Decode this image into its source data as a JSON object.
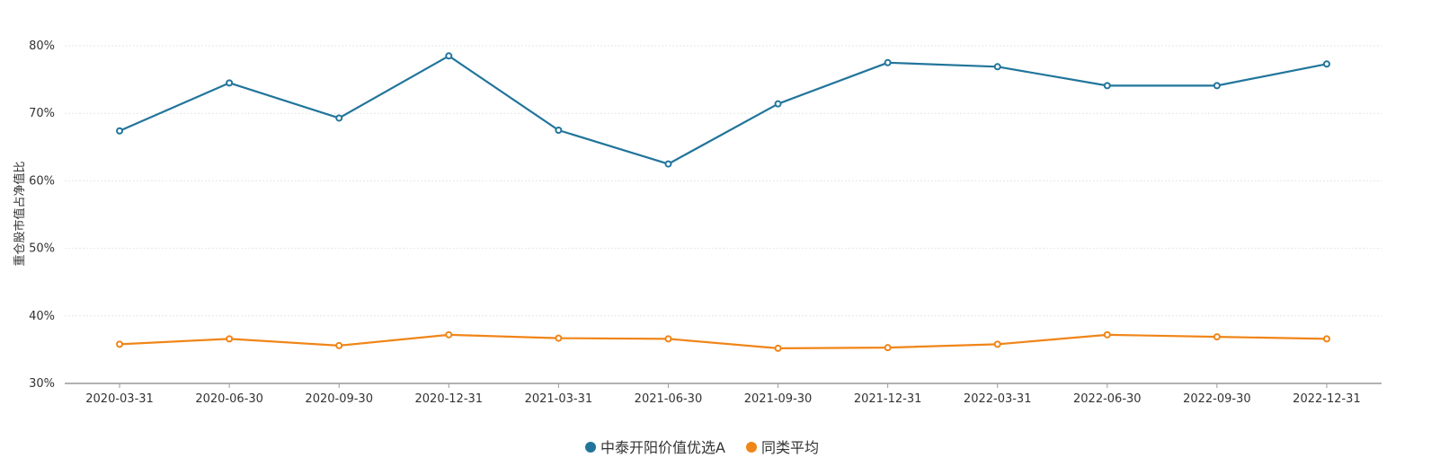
{
  "chart_data": {
    "type": "line",
    "ylabel": "重仓股市值占净值比",
    "xlabel": "",
    "ylim": [
      30,
      80
    ],
    "yticks": [
      "30%",
      "40%",
      "50%",
      "60%",
      "70%",
      "80%"
    ],
    "ytick_values": [
      30,
      40,
      50,
      60,
      70,
      80
    ],
    "grid": true,
    "legend_position": "bottom-center",
    "categories": [
      "2020-03-31",
      "2020-06-30",
      "2020-09-30",
      "2020-12-31",
      "2021-03-31",
      "2021-06-30",
      "2021-09-30",
      "2021-12-31",
      "2022-03-31",
      "2022-06-30",
      "2022-09-30",
      "2022-12-31"
    ],
    "series": [
      {
        "name": "中泰开阳价值优选A",
        "color": "#21759b",
        "values": [
          67.4,
          74.5,
          69.3,
          78.5,
          67.5,
          62.5,
          71.4,
          77.5,
          76.9,
          74.1,
          74.1,
          77.3
        ]
      },
      {
        "name": "同类平均",
        "color": "#f08518",
        "values": [
          35.8,
          36.6,
          35.6,
          37.2,
          36.7,
          36.6,
          35.2,
          35.3,
          35.8,
          37.2,
          36.9,
          36.6
        ]
      }
    ]
  }
}
